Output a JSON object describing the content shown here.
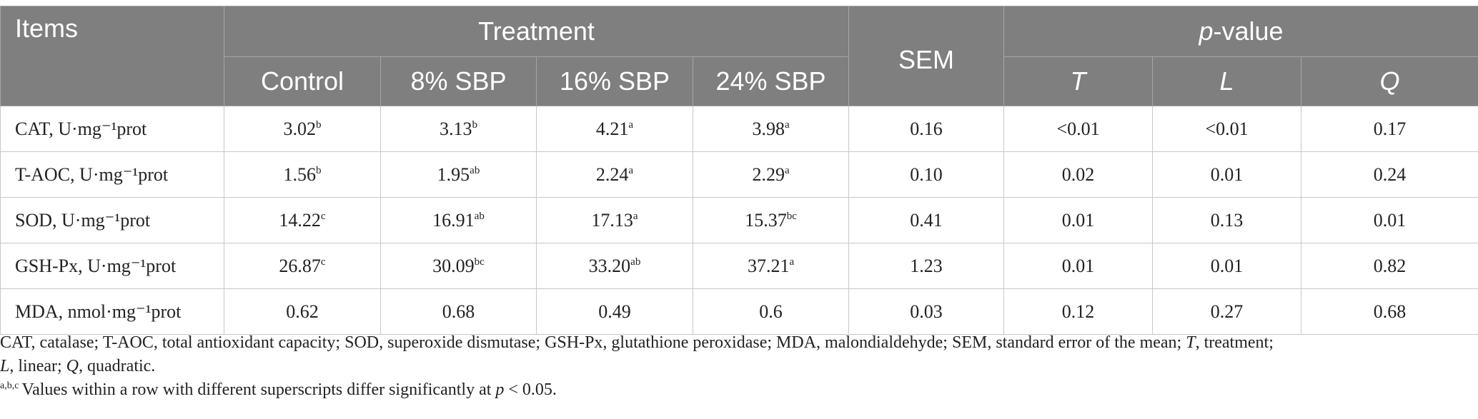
{
  "table": {
    "headers": {
      "items": "Items",
      "treatment": "Treatment",
      "sem": "SEM",
      "pvalue_p": "p",
      "pvalue_rest": "-value",
      "sub": [
        "Control",
        "8% SBP",
        "16% SBP",
        "24% SBP"
      ],
      "p_sub": [
        "T",
        "L",
        "Q"
      ]
    },
    "rows": [
      {
        "item": "CAT, U·mg⁻¹prot",
        "control": "3.02",
        "control_sup": "b",
        "sbp8": "3.13",
        "sbp8_sup": "b",
        "sbp16": "4.21",
        "sbp16_sup": "a",
        "sbp24": "3.98",
        "sbp24_sup": "a",
        "sem": "0.16",
        "t": "<0.01",
        "l": "<0.01",
        "q": "0.17"
      },
      {
        "item": "T-AOC, U·mg⁻¹prot",
        "control": "1.56",
        "control_sup": "b",
        "sbp8": "1.95",
        "sbp8_sup": "ab",
        "sbp16": "2.24",
        "sbp16_sup": "a",
        "sbp24": "2.29",
        "sbp24_sup": "a",
        "sem": "0.10",
        "t": "0.02",
        "l": "0.01",
        "q": "0.24"
      },
      {
        "item": "SOD, U·mg⁻¹prot",
        "control": "14.22",
        "control_sup": "c",
        "sbp8": "16.91",
        "sbp8_sup": "ab",
        "sbp16": "17.13",
        "sbp16_sup": "a",
        "sbp24": "15.37",
        "sbp24_sup": "bc",
        "sem": "0.41",
        "t": "0.01",
        "l": "0.13",
        "q": "0.01"
      },
      {
        "item": "GSH-Px, U·mg⁻¹prot",
        "control": "26.87",
        "control_sup": "c",
        "sbp8": "30.09",
        "sbp8_sup": "bc",
        "sbp16": "33.20",
        "sbp16_sup": "ab",
        "sbp24": "37.21",
        "sbp24_sup": "a",
        "sem": "1.23",
        "t": "0.01",
        "l": "0.01",
        "q": "0.82"
      },
      {
        "item": "MDA, nmol·mg⁻¹prot",
        "control": "0.62",
        "control_sup": "",
        "sbp8": "0.68",
        "sbp8_sup": "",
        "sbp16": "0.49",
        "sbp16_sup": "",
        "sbp24": "0.6",
        "sbp24_sup": "",
        "sem": "0.03",
        "t": "0.12",
        "l": "0.27",
        "q": "0.68"
      }
    ]
  },
  "notes": {
    "abbrev_a": "CAT, catalase; T-AOC, total antioxidant capacity; SOD, superoxide dismutase; GSH-Px, glutathione peroxidase; MDA, malondialdehyde; SEM, standard error of the mean; ",
    "abbrev_t": "T",
    "abbrev_b": ", treatment;",
    "abbrev_l": "L",
    "abbrev_c": ", linear; ",
    "abbrev_q": "Q",
    "abbrev_d": ", quadratic.",
    "sig_sup": "a,b,c",
    "sig_a": "Values within a row with different superscripts differ significantly at ",
    "sig_p": "p",
    "sig_b": " < 0.05."
  }
}
